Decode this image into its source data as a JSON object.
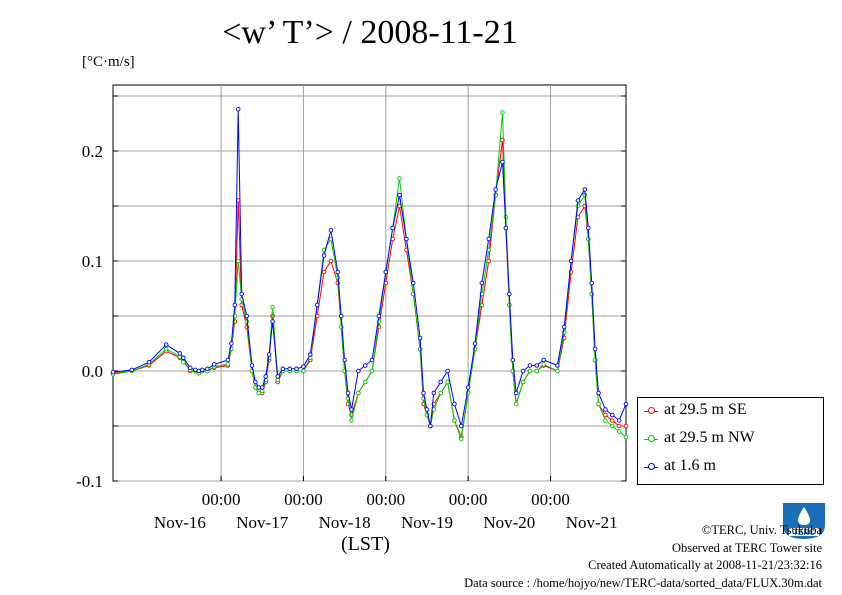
{
  "title": "<w’ T’> / 2008-11-21",
  "chart_data": {
    "type": "line",
    "title": "<w’ T’> / 2008-11-21",
    "ylabel": "[°C·m/s]",
    "ylim": [
      -0.1,
      0.26
    ],
    "yticks": [
      -0.1,
      0.0,
      0.1,
      0.2
    ],
    "yticklabels": [
      "-0.1",
      "0.0",
      "0.1",
      "0.2"
    ],
    "x_start": "2008-11-15 16:30",
    "x_end": "2008-11-21 22:00",
    "xtick_times": [
      "2008-11-17 00:00",
      "2008-11-18 00:00",
      "2008-11-19 00:00",
      "2008-11-20 00:00",
      "2008-11-21 00:00"
    ],
    "xtick_labels": [
      "00:00",
      "00:00",
      "00:00",
      "00:00",
      "00:00"
    ],
    "day_labels": [
      "Nov-16",
      "Nov-17",
      "Nov-18",
      "Nov-19",
      "Nov-20",
      "Nov-21"
    ],
    "xlabel": "(LST)",
    "grid": true,
    "legend": "bottom-right outside",
    "series": [
      {
        "name": "at 29.5 m SE",
        "color": "#ff0000",
        "x": [
          "2008-11-15 16:30",
          "2008-11-15 22:00",
          "2008-11-16 03:00",
          "2008-11-16 08:00",
          "2008-11-16 12:00",
          "2008-11-16 13:00",
          "2008-11-16 15:00",
          "2008-11-16 16:30",
          "2008-11-16 17:30",
          "2008-11-16 18:30",
          "2008-11-16 20:00",
          "2008-11-16 22:00",
          "2008-11-17 02:00",
          "2008-11-17 03:00",
          "2008-11-17 04:00",
          "2008-11-17 05:00",
          "2008-11-17 06:00",
          "2008-11-17 07:30",
          "2008-11-17 09:00",
          "2008-11-17 10:00",
          "2008-11-17 11:00",
          "2008-11-17 12:00",
          "2008-11-17 13:00",
          "2008-11-17 14:00",
          "2008-11-17 15:00",
          "2008-11-17 16:30",
          "2008-11-17 18:00",
          "2008-11-17 20:00",
          "2008-11-17 22:00",
          "2008-11-18 00:00",
          "2008-11-18 02:00",
          "2008-11-18 04:00",
          "2008-11-18 06:00",
          "2008-11-18 08:00",
          "2008-11-18 10:00",
          "2008-11-18 11:00",
          "2008-11-18 12:00",
          "2008-11-18 13:00",
          "2008-11-18 14:00",
          "2008-11-18 16:00",
          "2008-11-18 18:00",
          "2008-11-18 20:00",
          "2008-11-18 22:00",
          "2008-11-19 00:00",
          "2008-11-19 02:00",
          "2008-11-19 04:00",
          "2008-11-19 06:00",
          "2008-11-19 08:00",
          "2008-11-19 10:00",
          "2008-11-19 11:00",
          "2008-11-19 12:00",
          "2008-11-19 13:00",
          "2008-11-19 14:00",
          "2008-11-19 16:00",
          "2008-11-19 18:00",
          "2008-11-19 20:00",
          "2008-11-19 22:00",
          "2008-11-20 00:00",
          "2008-11-20 02:00",
          "2008-11-20 04:00",
          "2008-11-20 06:00",
          "2008-11-20 08:00",
          "2008-11-20 10:00",
          "2008-11-20 11:00",
          "2008-11-20 12:00",
          "2008-11-20 13:00",
          "2008-11-20 14:00",
          "2008-11-20 16:00",
          "2008-11-20 18:00",
          "2008-11-20 20:00",
          "2008-11-20 22:00",
          "2008-11-21 02:00",
          "2008-11-21 04:00",
          "2008-11-21 06:00",
          "2008-11-21 08:00",
          "2008-11-21 10:00",
          "2008-11-21 11:00",
          "2008-11-21 12:00",
          "2008-11-21 13:00",
          "2008-11-21 14:00",
          "2008-11-21 16:00",
          "2008-11-21 18:00",
          "2008-11-21 20:00",
          "2008-11-21 22:00"
        ],
        "y": [
          -0.002,
          0.0,
          0.005,
          0.018,
          0.012,
          0.01,
          0.0,
          0.0,
          -0.002,
          0.0,
          0.0,
          0.003,
          0.005,
          0.02,
          0.045,
          0.155,
          0.06,
          0.04,
          0.0,
          -0.015,
          -0.02,
          -0.02,
          -0.01,
          0.01,
          0.05,
          -0.01,
          0.0,
          0.0,
          0.0,
          0.0,
          0.01,
          0.05,
          0.09,
          0.1,
          0.08,
          0.04,
          0.0,
          -0.03,
          -0.04,
          -0.02,
          -0.01,
          0.0,
          0.04,
          0.08,
          0.12,
          0.15,
          0.11,
          0.07,
          0.02,
          -0.03,
          -0.04,
          -0.05,
          -0.03,
          -0.02,
          -0.01,
          -0.045,
          -0.06,
          -0.02,
          0.02,
          0.06,
          0.1,
          0.16,
          0.21,
          0.13,
          0.06,
          0.0,
          -0.03,
          -0.01,
          0.0,
          0.0,
          0.005,
          0.0,
          0.03,
          0.09,
          0.14,
          0.15,
          0.12,
          0.07,
          0.01,
          -0.03,
          -0.04,
          -0.045,
          -0.05,
          -0.05
        ]
      },
      {
        "name": "at 29.5 m NW",
        "color": "#00cc00",
        "x": [
          "2008-11-15 16:30",
          "2008-11-15 22:00",
          "2008-11-16 03:00",
          "2008-11-16 08:00",
          "2008-11-16 12:00",
          "2008-11-16 13:00",
          "2008-11-16 15:00",
          "2008-11-16 16:30",
          "2008-11-16 17:30",
          "2008-11-16 18:30",
          "2008-11-16 20:00",
          "2008-11-16 22:00",
          "2008-11-17 02:00",
          "2008-11-17 03:00",
          "2008-11-17 04:00",
          "2008-11-17 05:00",
          "2008-11-17 06:00",
          "2008-11-17 07:30",
          "2008-11-17 09:00",
          "2008-11-17 10:00",
          "2008-11-17 11:00",
          "2008-11-17 12:00",
          "2008-11-17 13:00",
          "2008-11-17 14:00",
          "2008-11-17 15:00",
          "2008-11-17 16:30",
          "2008-11-17 18:00",
          "2008-11-17 20:00",
          "2008-11-17 22:00",
          "2008-11-18 00:00",
          "2008-11-18 02:00",
          "2008-11-18 04:00",
          "2008-11-18 06:00",
          "2008-11-18 08:00",
          "2008-11-18 10:00",
          "2008-11-18 11:00",
          "2008-11-18 12:00",
          "2008-11-18 13:00",
          "2008-11-18 14:00",
          "2008-11-18 16:00",
          "2008-11-18 18:00",
          "2008-11-18 20:00",
          "2008-11-18 22:00",
          "2008-11-19 00:00",
          "2008-11-19 02:00",
          "2008-11-19 04:00",
          "2008-11-19 06:00",
          "2008-11-19 08:00",
          "2008-11-19 10:00",
          "2008-11-19 11:00",
          "2008-11-19 12:00",
          "2008-11-19 13:00",
          "2008-11-19 14:00",
          "2008-11-19 16:00",
          "2008-11-19 18:00",
          "2008-11-19 20:00",
          "2008-11-19 22:00",
          "2008-11-20 00:00",
          "2008-11-20 02:00",
          "2008-11-20 04:00",
          "2008-11-20 06:00",
          "2008-11-20 08:00",
          "2008-11-20 10:00",
          "2008-11-20 11:00",
          "2008-11-20 12:00",
          "2008-11-20 13:00",
          "2008-11-20 14:00",
          "2008-11-20 16:00",
          "2008-11-20 18:00",
          "2008-11-20 20:00",
          "2008-11-20 22:00",
          "2008-11-21 02:00",
          "2008-11-21 04:00",
          "2008-11-21 06:00",
          "2008-11-21 08:00",
          "2008-11-21 10:00",
          "2008-11-21 11:00",
          "2008-11-21 12:00",
          "2008-11-21 13:00",
          "2008-11-21 14:00",
          "2008-11-21 16:00",
          "2008-11-21 18:00",
          "2008-11-21 20:00",
          "2008-11-21 22:00"
        ],
        "y": [
          -0.003,
          0.0,
          0.006,
          0.02,
          0.013,
          0.008,
          0.001,
          0.0,
          -0.002,
          0.0,
          0.0,
          0.004,
          0.006,
          0.02,
          0.05,
          0.1,
          0.065,
          0.045,
          0.0,
          -0.015,
          -0.02,
          -0.018,
          -0.008,
          0.012,
          0.058,
          -0.008,
          0.0,
          0.0,
          0.0,
          0.0,
          0.012,
          0.06,
          0.11,
          0.12,
          0.085,
          0.04,
          0.0,
          -0.025,
          -0.045,
          -0.02,
          -0.01,
          0.0,
          0.045,
          0.09,
          0.13,
          0.175,
          0.12,
          0.07,
          0.02,
          -0.025,
          -0.04,
          -0.05,
          -0.035,
          -0.02,
          -0.01,
          -0.045,
          -0.062,
          -0.02,
          0.02,
          0.07,
          0.11,
          0.16,
          0.235,
          0.14,
          0.06,
          0.0,
          -0.03,
          -0.01,
          0.0,
          0.0,
          0.006,
          0.0,
          0.035,
          0.1,
          0.15,
          0.16,
          0.12,
          0.07,
          0.01,
          -0.03,
          -0.045,
          -0.05,
          -0.055,
          -0.06
        ]
      },
      {
        "name": "at 1.6 m",
        "color": "#0000ff",
        "x": [
          "2008-11-15 16:30",
          "2008-11-15 22:00",
          "2008-11-16 03:00",
          "2008-11-16 08:00",
          "2008-11-16 12:00",
          "2008-11-16 13:00",
          "2008-11-16 15:00",
          "2008-11-16 16:30",
          "2008-11-16 17:30",
          "2008-11-16 18:30",
          "2008-11-16 20:00",
          "2008-11-16 22:00",
          "2008-11-17 02:00",
          "2008-11-17 03:00",
          "2008-11-17 04:00",
          "2008-11-17 05:00",
          "2008-11-17 06:00",
          "2008-11-17 07:30",
          "2008-11-17 09:00",
          "2008-11-17 10:00",
          "2008-11-17 11:00",
          "2008-11-17 12:00",
          "2008-11-17 13:00",
          "2008-11-17 14:00",
          "2008-11-17 15:00",
          "2008-11-17 16:30",
          "2008-11-17 18:00",
          "2008-11-17 20:00",
          "2008-11-17 22:00",
          "2008-11-18 00:00",
          "2008-11-18 02:00",
          "2008-11-18 04:00",
          "2008-11-18 06:00",
          "2008-11-18 08:00",
          "2008-11-18 10:00",
          "2008-11-18 11:00",
          "2008-11-18 12:00",
          "2008-11-18 13:00",
          "2008-11-18 14:00",
          "2008-11-18 16:00",
          "2008-11-18 18:00",
          "2008-11-18 20:00",
          "2008-11-18 22:00",
          "2008-11-19 00:00",
          "2008-11-19 02:00",
          "2008-11-19 04:00",
          "2008-11-19 06:00",
          "2008-11-19 08:00",
          "2008-11-19 10:00",
          "2008-11-19 11:00",
          "2008-11-19 12:00",
          "2008-11-19 13:00",
          "2008-11-19 14:00",
          "2008-11-19 16:00",
          "2008-11-19 18:00",
          "2008-11-19 20:00",
          "2008-11-19 22:00",
          "2008-11-20 00:00",
          "2008-11-20 02:00",
          "2008-11-20 04:00",
          "2008-11-20 06:00",
          "2008-11-20 08:00",
          "2008-11-20 10:00",
          "2008-11-20 11:00",
          "2008-11-20 12:00",
          "2008-11-20 13:00",
          "2008-11-20 14:00",
          "2008-11-20 16:00",
          "2008-11-20 18:00",
          "2008-11-20 20:00",
          "2008-11-20 22:00",
          "2008-11-21 02:00",
          "2008-11-21 04:00",
          "2008-11-21 06:00",
          "2008-11-21 08:00",
          "2008-11-21 10:00",
          "2008-11-21 11:00",
          "2008-11-21 12:00",
          "2008-11-21 13:00",
          "2008-11-21 14:00",
          "2008-11-21 16:00",
          "2008-11-21 18:00",
          "2008-11-21 20:00",
          "2008-11-21 22:00"
        ],
        "y": [
          -0.001,
          0.001,
          0.008,
          0.024,
          0.016,
          0.012,
          0.003,
          0.001,
          0.0,
          0.001,
          0.002,
          0.006,
          0.01,
          0.025,
          0.06,
          0.238,
          0.07,
          0.05,
          0.005,
          -0.01,
          -0.015,
          -0.015,
          -0.005,
          0.015,
          0.045,
          -0.005,
          0.002,
          0.002,
          0.002,
          0.004,
          0.015,
          0.06,
          0.105,
          0.128,
          0.09,
          0.05,
          0.01,
          -0.02,
          -0.035,
          0.0,
          0.005,
          0.01,
          0.05,
          0.09,
          0.13,
          0.16,
          0.12,
          0.08,
          0.03,
          -0.02,
          -0.035,
          -0.05,
          -0.02,
          -0.01,
          0.0,
          -0.03,
          -0.05,
          -0.015,
          0.025,
          0.08,
          0.12,
          0.165,
          0.19,
          0.13,
          0.07,
          0.01,
          -0.02,
          0.0,
          0.005,
          0.005,
          0.01,
          0.005,
          0.04,
          0.1,
          0.155,
          0.165,
          0.13,
          0.08,
          0.02,
          -0.02,
          -0.035,
          -0.04,
          -0.045,
          -0.03
        ]
      }
    ]
  },
  "legend_items": [
    "at 29.5 m SE",
    "at 29.5 m NW",
    "at 1.6 m"
  ],
  "xlabel": "(LST)",
  "credits": {
    "copyright": "©TERC, Univ. Tsukuba",
    "site": "Observed at TERC Tower site",
    "created": "Created Automatically at 2008-11-21/23:32:16",
    "source": "Data source : /home/hojyo/new/TERC-data/sorted_data/FLUX.30m.dat"
  },
  "logo_text": "TERC",
  "colors": {
    "se": "#ff0000",
    "nw": "#00cc00",
    "low": "#0000ff",
    "logo": "#1a6fb8"
  }
}
